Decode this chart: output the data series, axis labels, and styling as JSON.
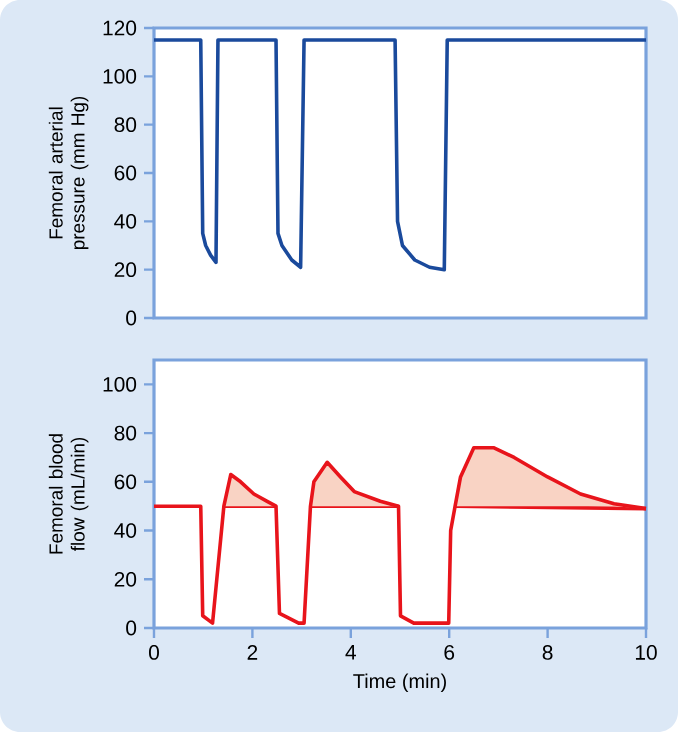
{
  "chart_data": [
    {
      "type": "line",
      "ylabel": "Femoral arterial pressure (mm Hg)",
      "xlim": [
        0,
        10
      ],
      "ylim": [
        0,
        120
      ],
      "yticks": [
        0,
        20,
        40,
        60,
        80,
        100,
        120
      ],
      "tick_labels": "y",
      "x": [
        0,
        0.95,
        0.99,
        1.05,
        1.15,
        1.26,
        1.3,
        2.48,
        2.52,
        2.6,
        2.8,
        2.98,
        3.05,
        4.9,
        4.95,
        5.05,
        5.3,
        5.6,
        5.9,
        5.96,
        10
      ],
      "series": [
        {
          "color": "#1a4a9c",
          "values": [
            115,
            115,
            35,
            30,
            26,
            23,
            115,
            115,
            35,
            30,
            24,
            21,
            115,
            115,
            40,
            30,
            24,
            21,
            20,
            115,
            115
          ]
        }
      ]
    },
    {
      "type": "line",
      "ylabel": "Femoral blood flow (mL/min)",
      "xlabel": "Time (min)",
      "xlim": [
        0,
        10
      ],
      "ylim": [
        0,
        110
      ],
      "xticks": [
        0,
        2,
        4,
        6,
        8,
        10
      ],
      "yticks": [
        0,
        20,
        40,
        60,
        80,
        100
      ],
      "x": [
        0,
        0.95,
        0.99,
        1.19,
        1.42,
        1.56,
        1.76,
        2.03,
        2.3,
        2.48,
        2.55,
        2.94,
        3.05,
        3.18,
        3.25,
        3.52,
        3.79,
        4.07,
        4.6,
        4.97,
        5.01,
        5.28,
        5.99,
        6.03,
        6.12,
        6.23,
        6.5,
        6.9,
        7.32,
        8.0,
        8.67,
        9.35,
        10
      ],
      "series": [
        {
          "type": "line",
          "color": "#e8141b",
          "x": [
            1.42,
            2.48,
            2.52,
            3.18,
            4.97,
            5.0,
            6.12,
            10
          ],
          "values": [
            50,
            50,
            null,
            50,
            50,
            null,
            50,
            49
          ]
        },
        {
          "color": "#e8141b",
          "values": [
            50,
            50,
            5,
            2,
            50,
            63,
            60,
            55,
            52,
            50,
            6,
            2,
            2,
            50,
            60,
            68,
            62,
            56,
            52,
            50,
            5,
            2,
            2,
            40,
            50,
            62,
            74,
            74,
            70,
            62,
            55,
            51,
            49
          ],
          "lower": [
            null,
            null,
            null,
            null,
            50,
            50,
            50,
            50,
            50,
            50,
            null,
            null,
            null,
            50,
            50,
            50,
            50,
            50,
            50,
            50,
            null,
            null,
            null,
            null,
            50,
            50,
            50,
            50,
            50,
            50,
            50,
            50,
            49
          ],
          "upper": [
            null,
            null,
            null,
            null,
            50,
            63,
            60,
            55,
            52,
            50,
            null,
            null,
            null,
            50,
            60,
            68,
            62,
            56,
            52,
            50,
            null,
            null,
            null,
            null,
            50,
            62,
            74,
            74,
            70,
            62,
            55,
            51,
            49
          ]
        }
      ]
    }
  ]
}
